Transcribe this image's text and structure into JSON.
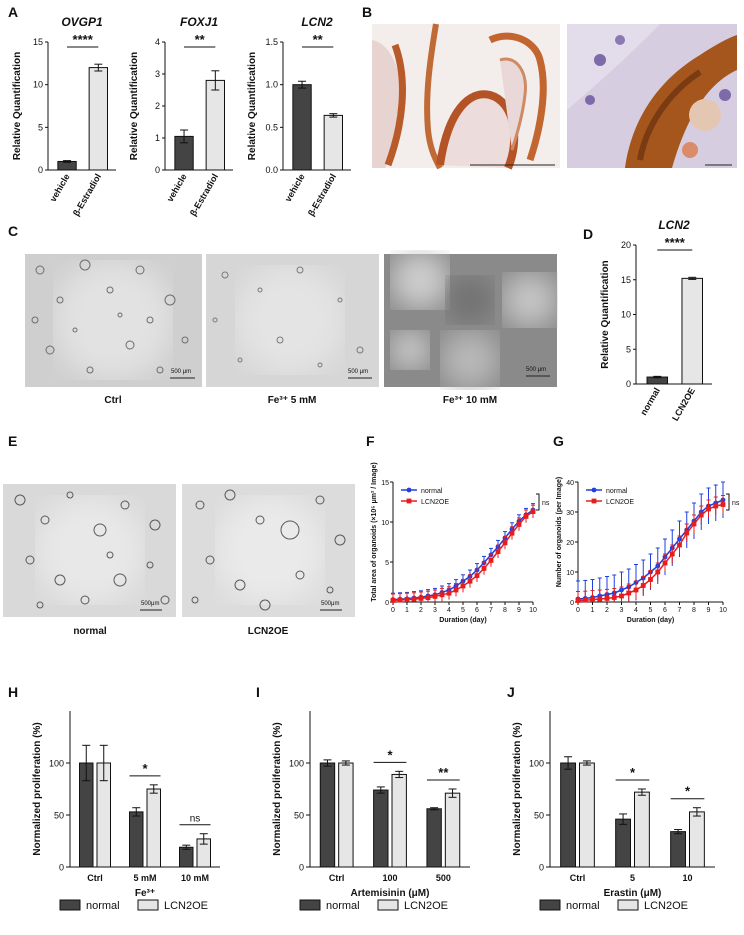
{
  "panels": {
    "A": "A",
    "B": "B",
    "C": "C",
    "D": "D",
    "E": "E",
    "F": "F",
    "G": "G",
    "H": "H",
    "I": "I",
    "J": "J"
  },
  "panel_c": {
    "captions": [
      "Ctrl",
      "Fe³⁺ 5 mM",
      "Fe³⁺ 10 mM"
    ],
    "scale_bar": "500 μm"
  },
  "panel_e": {
    "captions": [
      "normal",
      "LCN2OE"
    ],
    "scale_bar": "500μm"
  },
  "chart_data": [
    {
      "panel": "A",
      "type": "bar",
      "title": "OVGP1",
      "categories": [
        "vehicle",
        "β-Estradiol"
      ],
      "values": [
        1.0,
        12.0
      ],
      "errors": [
        0.1,
        0.4
      ],
      "ylabel": "Relative Quantification",
      "ylim": [
        0,
        15
      ],
      "yticks": [
        0,
        5,
        10,
        15
      ],
      "significance": "****",
      "colors": [
        "#444444",
        "#e6e6e6"
      ]
    },
    {
      "panel": "A",
      "type": "bar",
      "title": "FOXJ1",
      "categories": [
        "vehicle",
        "β-Estradiol"
      ],
      "values": [
        1.05,
        2.8
      ],
      "errors": [
        0.2,
        0.3
      ],
      "ylabel": "Relative Quantification",
      "ylim": [
        0,
        4
      ],
      "yticks": [
        0,
        1,
        2,
        3,
        4
      ],
      "significance": "**",
      "colors": [
        "#444444",
        "#e6e6e6"
      ]
    },
    {
      "panel": "A",
      "type": "bar",
      "title": "LCN2",
      "categories": [
        "vehicle",
        "β-Estradiol"
      ],
      "values": [
        1.0,
        0.64
      ],
      "errors": [
        0.04,
        0.02
      ],
      "ylabel": "Relative Quantification",
      "ylim": [
        0,
        1.5
      ],
      "yticks": [
        "0.0",
        "0.5",
        "1.0",
        "1.5"
      ],
      "significance": "**",
      "colors": [
        "#444444",
        "#e6e6e6"
      ]
    },
    {
      "panel": "D",
      "type": "bar",
      "title": "LCN2",
      "categories": [
        "normal",
        "LCN2OE"
      ],
      "values": [
        1.0,
        15.2
      ],
      "errors": [
        0.1,
        0.15
      ],
      "ylabel": "Relative Quantification",
      "ylim": [
        0,
        20
      ],
      "yticks": [
        0,
        5,
        10,
        15,
        20
      ],
      "significance": "****",
      "colors": [
        "#444444",
        "#e6e6e6"
      ]
    },
    {
      "panel": "F",
      "type": "line",
      "xlabel": "Duration (day)",
      "ylabel": "Total area of organoids (×10⁵ μm² / Image)",
      "xlim": [
        0,
        10
      ],
      "ylim": [
        0,
        15
      ],
      "xticks": [
        0,
        1,
        2,
        3,
        4,
        5,
        6,
        7,
        8,
        9,
        10
      ],
      "yticks": [
        0,
        5,
        10,
        15
      ],
      "x": [
        0,
        0.5,
        1,
        1.5,
        2,
        2.5,
        3,
        3.5,
        4,
        4.5,
        5,
        5.5,
        6,
        6.5,
        7,
        7.5,
        8,
        8.5,
        9,
        9.5,
        10
      ],
      "series": [
        {
          "name": "normal",
          "color": "#1f3fe0",
          "values": [
            0.3,
            0.35,
            0.4,
            0.5,
            0.6,
            0.75,
            0.9,
            1.2,
            1.5,
            2.0,
            2.6,
            3.2,
            4.0,
            4.9,
            5.9,
            6.9,
            8.0,
            9.1,
            10.1,
            10.9,
            11.5
          ],
          "error": 0.8
        },
        {
          "name": "LCN2OE",
          "color": "#e81c1c",
          "values": [
            0.2,
            0.25,
            0.3,
            0.35,
            0.45,
            0.55,
            0.7,
            0.9,
            1.1,
            1.5,
            2.0,
            2.6,
            3.3,
            4.2,
            5.2,
            6.3,
            7.4,
            8.6,
            9.7,
            10.7,
            11.3
          ],
          "error": 0.8
        }
      ],
      "significance": "ns"
    },
    {
      "panel": "G",
      "type": "line",
      "xlabel": "Duration (day)",
      "ylabel": "Number of organoids (per Image)",
      "xlim": [
        0,
        10
      ],
      "ylim": [
        0,
        40
      ],
      "xticks": [
        0,
        1,
        2,
        3,
        4,
        5,
        6,
        7,
        8,
        9,
        10
      ],
      "yticks": [
        0,
        10,
        20,
        30,
        40
      ],
      "x": [
        0,
        0.5,
        1,
        1.5,
        2,
        2.5,
        3,
        3.5,
        4,
        4.5,
        5,
        5.5,
        6,
        6.5,
        7,
        7.5,
        8,
        8.5,
        9,
        9.5,
        10
      ],
      "series": [
        {
          "name": "normal",
          "color": "#1f3fe0",
          "values": [
            1,
            1.2,
            1.5,
            2,
            2.5,
            3,
            4,
            5,
            6.5,
            8,
            10,
            12,
            15,
            18,
            21,
            24,
            27,
            30,
            32,
            33,
            34
          ],
          "error": 6
        },
        {
          "name": "LCN2OE",
          "color": "#e81c1c",
          "values": [
            0.5,
            0.6,
            0.8,
            1,
            1.2,
            1.5,
            2,
            3,
            4,
            5.5,
            7.5,
            10,
            13,
            16,
            19,
            23,
            26,
            29,
            31,
            32,
            32.5
          ],
          "error": 3
        }
      ],
      "significance": "ns"
    },
    {
      "panel": "H",
      "type": "bar",
      "xlabel": "Fe³⁺",
      "ylabel": "Normalized proliferation (%)",
      "categories": [
        "Ctrl",
        "5 mM",
        "10 mM"
      ],
      "ylim": [
        0,
        150
      ],
      "yticks": [
        0,
        50,
        100
      ],
      "series": [
        {
          "name": "normal",
          "color": "#444444",
          "values": [
            100,
            53,
            19
          ],
          "errors": [
            17,
            4,
            2
          ]
        },
        {
          "name": "LCN2OE",
          "color": "#e6e6e6",
          "values": [
            100,
            75,
            27
          ],
          "errors": [
            17,
            4,
            5
          ]
        }
      ],
      "significance": [
        "",
        "*",
        "ns"
      ]
    },
    {
      "panel": "I",
      "type": "bar",
      "xlabel": "Artemisinin (μM)",
      "ylabel": "Normalized proliferation (%)",
      "categories": [
        "Ctrl",
        "100",
        "500"
      ],
      "ylim": [
        0,
        150
      ],
      "yticks": [
        0,
        50,
        100
      ],
      "series": [
        {
          "name": "normal",
          "color": "#444444",
          "values": [
            100,
            74,
            56
          ],
          "errors": [
            3,
            3,
            1
          ]
        },
        {
          "name": "LCN2OE",
          "color": "#e6e6e6",
          "values": [
            100,
            89,
            71
          ],
          "errors": [
            2,
            3,
            4
          ]
        }
      ],
      "significance": [
        "",
        "*",
        "**"
      ]
    },
    {
      "panel": "J",
      "type": "bar",
      "xlabel": "Erastin (μM)",
      "ylabel": "Normalized proliferation (%)",
      "categories": [
        "Ctrl",
        "5",
        "10"
      ],
      "ylim": [
        0,
        150
      ],
      "yticks": [
        0,
        50,
        100
      ],
      "series": [
        {
          "name": "normal",
          "color": "#444444",
          "values": [
            100,
            46,
            34
          ],
          "errors": [
            6,
            5,
            2
          ]
        },
        {
          "name": "LCN2OE",
          "color": "#e6e6e6",
          "values": [
            100,
            72,
            53
          ],
          "errors": [
            2,
            3,
            4
          ]
        }
      ],
      "significance": [
        "",
        "*",
        "*"
      ]
    }
  ]
}
